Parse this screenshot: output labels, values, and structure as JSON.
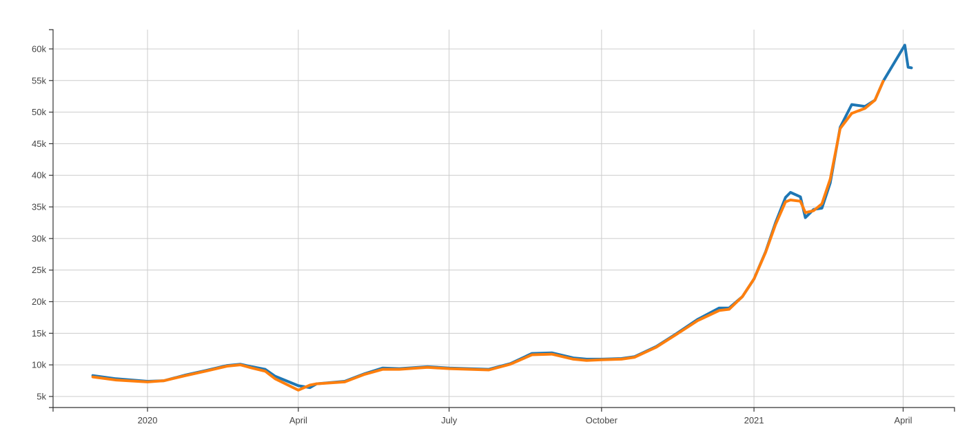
{
  "chart_data": {
    "type": "line",
    "title": "",
    "xlabel": "",
    "ylabel": "",
    "x_type": "date",
    "xlim": [
      "2019-11-05",
      "2021-05-02"
    ],
    "ylim": [
      3250,
      63050
    ],
    "grid": true,
    "legend": "none",
    "x_ticks": [
      {
        "date": "2020-01-01",
        "label": "2020"
      },
      {
        "date": "2020-04-01",
        "label": "April"
      },
      {
        "date": "2020-07-01",
        "label": "July"
      },
      {
        "date": "2020-10-01",
        "label": "October"
      },
      {
        "date": "2021-01-01",
        "label": "2021"
      },
      {
        "date": "2021-04-01",
        "label": "April"
      }
    ],
    "y_ticks": [
      {
        "value": 5000,
        "label": "5k"
      },
      {
        "value": 10000,
        "label": "10k"
      },
      {
        "value": 15000,
        "label": "15k"
      },
      {
        "value": 20000,
        "label": "20k"
      },
      {
        "value": 25000,
        "label": "25k"
      },
      {
        "value": 30000,
        "label": "30k"
      },
      {
        "value": 35000,
        "label": "35k"
      },
      {
        "value": 40000,
        "label": "40k"
      },
      {
        "value": 45000,
        "label": "45k"
      },
      {
        "value": 50000,
        "label": "50k"
      },
      {
        "value": 55000,
        "label": "55k"
      },
      {
        "value": 60000,
        "label": "60k"
      }
    ],
    "x": [
      "2019-11-29",
      "2019-12-13",
      "2020-01-01",
      "2020-01-11",
      "2020-01-24",
      "2020-02-05",
      "2020-02-18",
      "2020-02-26",
      "2020-03-04",
      "2020-03-12",
      "2020-03-18",
      "2020-04-01",
      "2020-04-08",
      "2020-04-12",
      "2020-04-29",
      "2020-05-11",
      "2020-05-22",
      "2020-06-01",
      "2020-06-18",
      "2020-07-01",
      "2020-07-25",
      "2020-08-07",
      "2020-08-20",
      "2020-09-01",
      "2020-09-14",
      "2020-09-22",
      "2020-10-01",
      "2020-10-13",
      "2020-10-21",
      "2020-11-03",
      "2020-11-15",
      "2020-11-28",
      "2020-12-11",
      "2020-12-17",
      "2020-12-25",
      "2021-01-01",
      "2021-01-08",
      "2021-01-14",
      "2021-01-20",
      "2021-01-23",
      "2021-01-29",
      "2021-02-01",
      "2021-02-06",
      "2021-02-11",
      "2021-02-16",
      "2021-02-22",
      "2021-03-01",
      "2021-03-09",
      "2021-03-15",
      "2021-03-20",
      "2021-04-02",
      "2021-04-04",
      "2021-04-06"
    ],
    "series": [
      {
        "color": "#1f77b4",
        "values": [
          8300,
          7800,
          7400,
          7500,
          8400,
          9100,
          9900,
          10100,
          9700,
          9300,
          8200,
          6700,
          6400,
          7000,
          7400,
          8600,
          9500,
          9400,
          9700,
          9500,
          9300,
          10200,
          11800,
          11900,
          11100,
          10900,
          10900,
          11000,
          11300,
          12900,
          14900,
          17200,
          19000,
          19000,
          20800,
          23600,
          27900,
          32500,
          36500,
          37300,
          36600,
          33300,
          34600,
          34800,
          38800,
          47600,
          51200,
          50900,
          51900,
          54900,
          60600,
          57100,
          57000
        ]
      },
      {
        "color": "#ff7f0e",
        "values": [
          8100,
          7600,
          7300,
          7500,
          8300,
          9000,
          9800,
          10000,
          9500,
          9000,
          7800,
          6000,
          6800,
          7000,
          7300,
          8500,
          9300,
          9300,
          9600,
          9400,
          9200,
          10100,
          11600,
          11700,
          10900,
          10700,
          10800,
          10900,
          11200,
          12800,
          14800,
          17000,
          18600,
          18800,
          20800,
          23600,
          27800,
          32200,
          35800,
          36100,
          35900,
          34100,
          34400,
          35500,
          39400,
          47400,
          49800,
          50600,
          51900,
          54900,
          null,
          null,
          null
        ]
      }
    ]
  }
}
